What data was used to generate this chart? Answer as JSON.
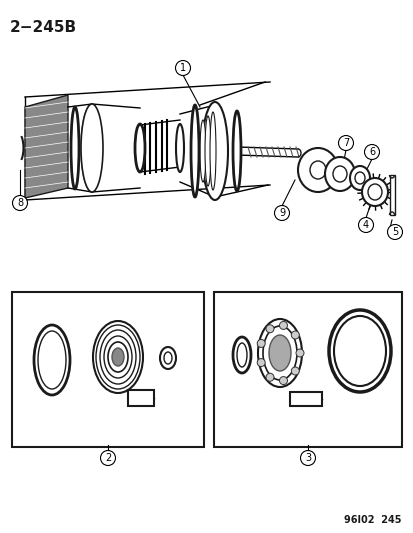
{
  "title": "2−245B",
  "footer": "96I02  245",
  "bg_color": "#ffffff",
  "line_color": "#1a1a1a",
  "fig_width": 4.14,
  "fig_height": 5.33,
  "dpi": 100
}
